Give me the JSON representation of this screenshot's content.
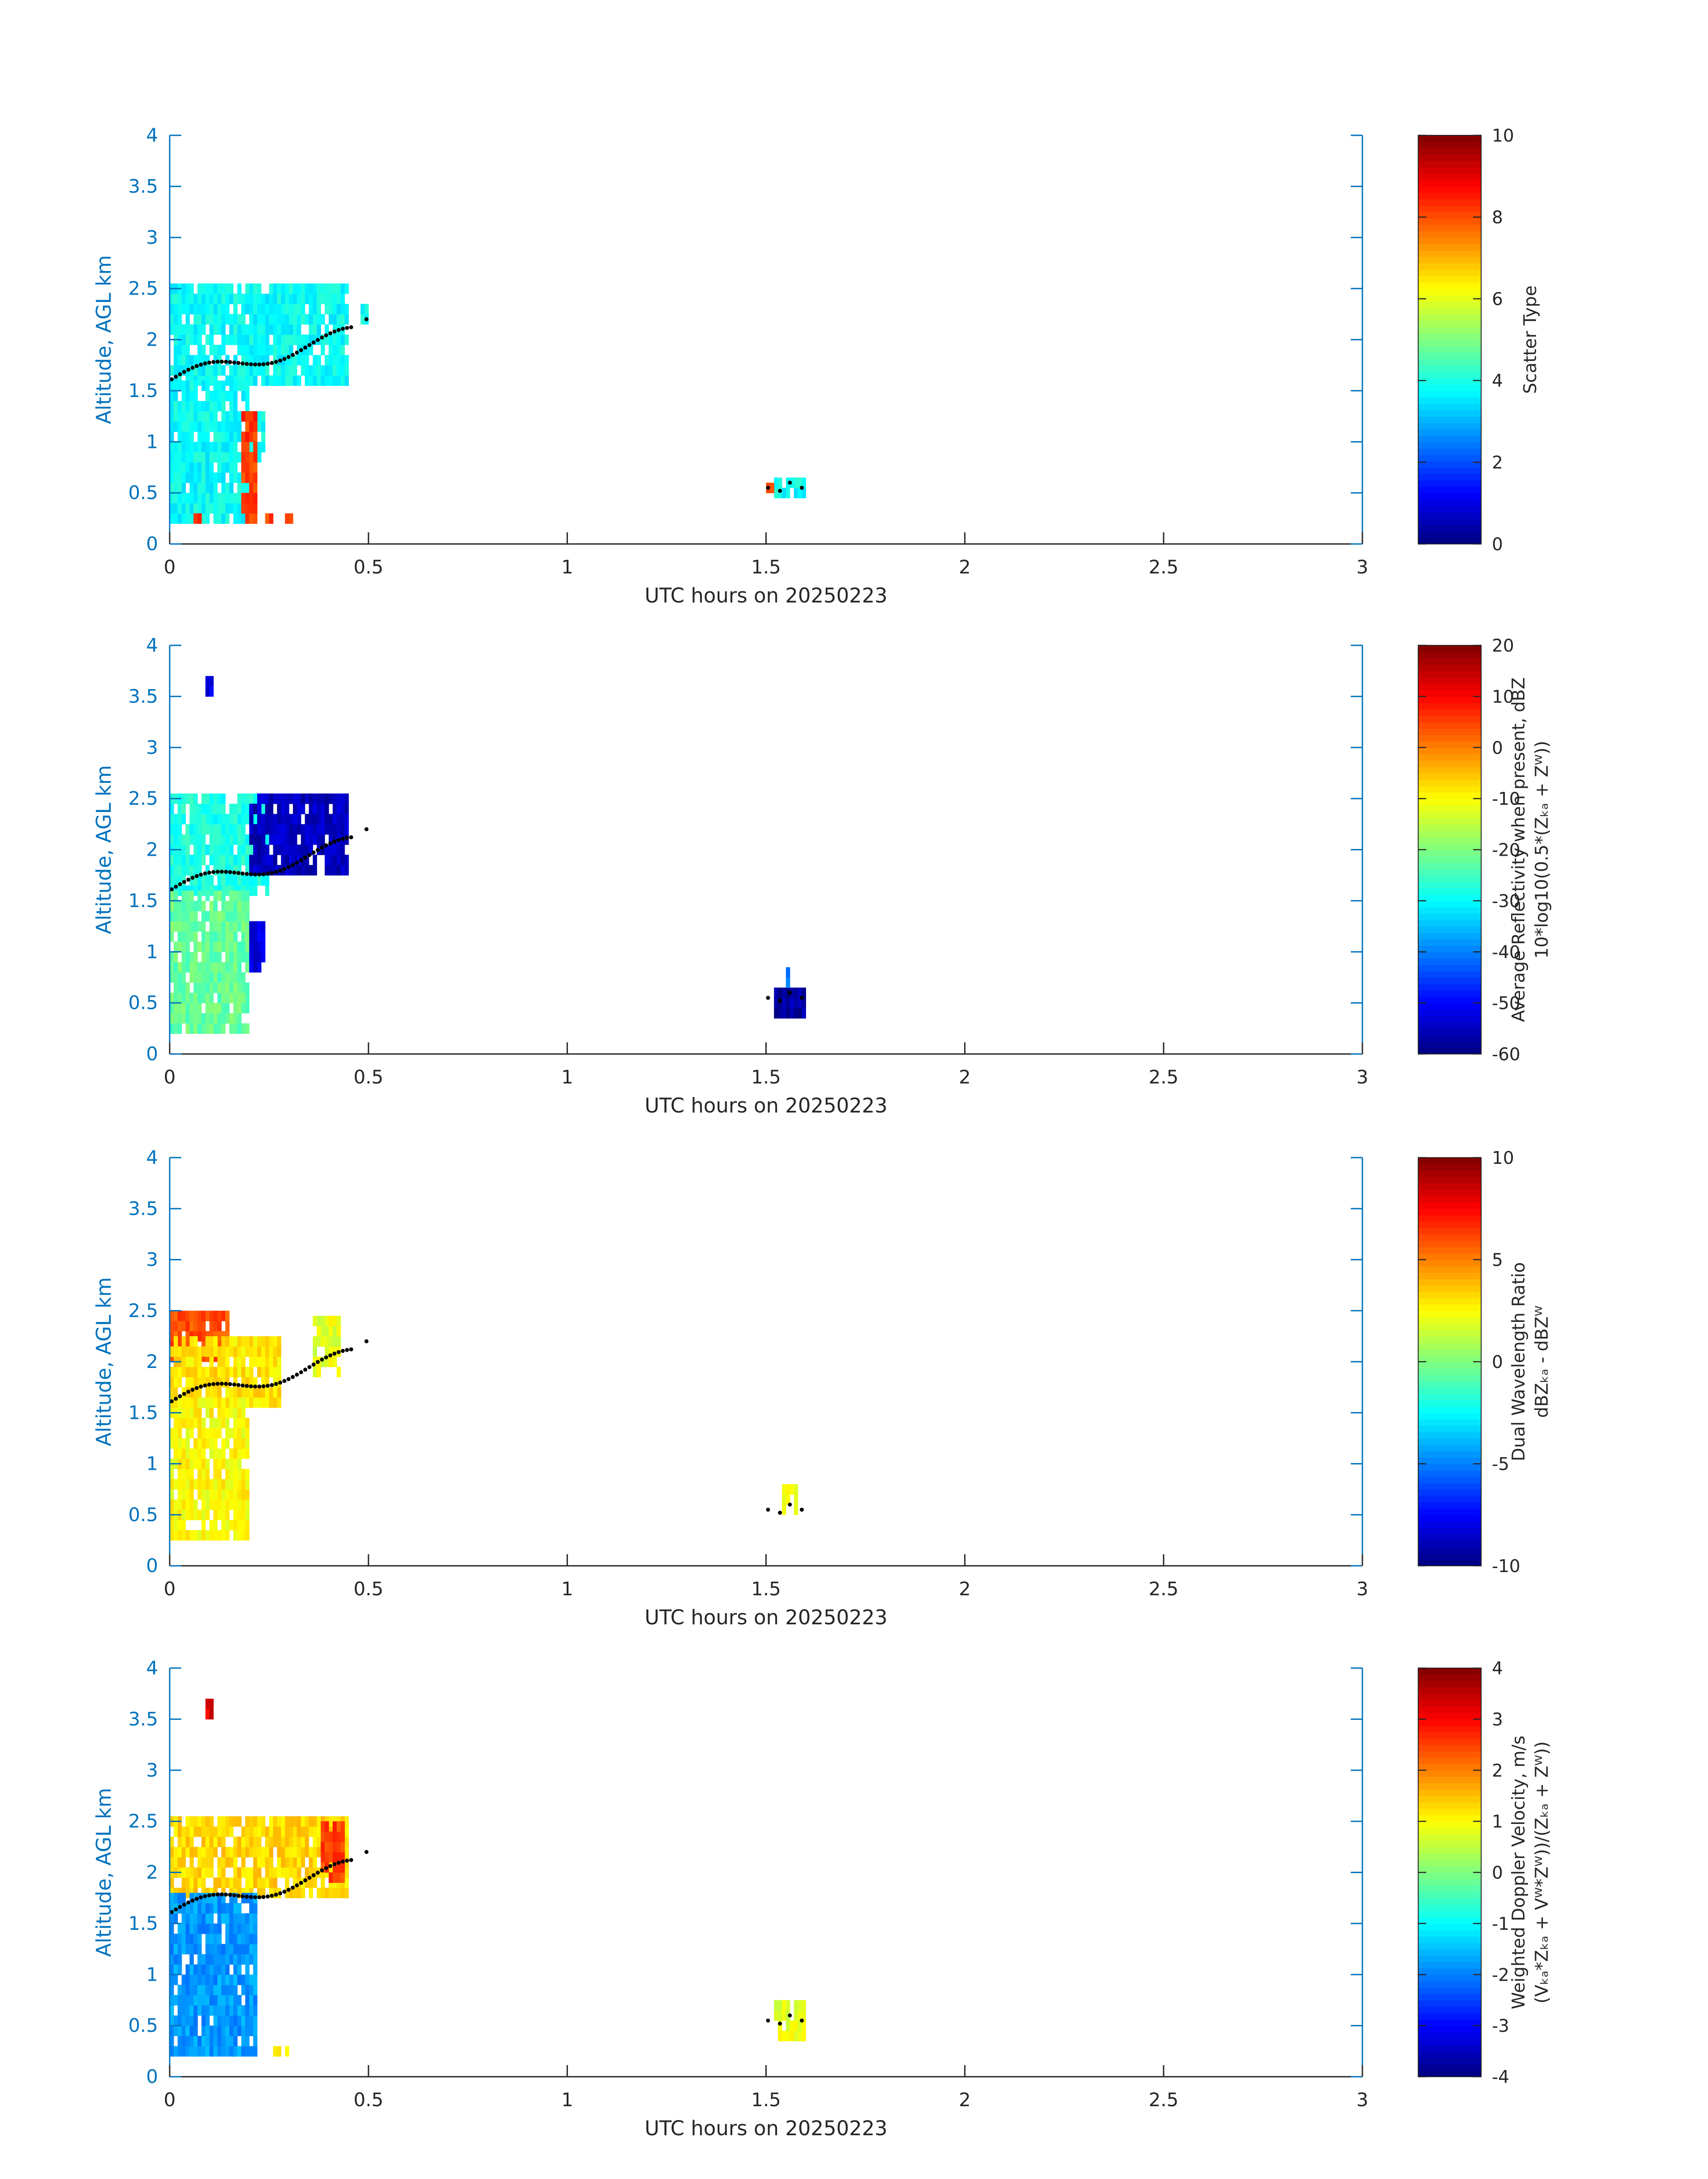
{
  "figure": {
    "title": ""
  },
  "chart_data": [
    {
      "type": "heatmap",
      "id": "scatter-type",
      "xlabel": "UTC hours on 20250223",
      "ylabel": "Altitude, AGL km",
      "xlim": [
        0,
        3
      ],
      "ylim": [
        0,
        4
      ],
      "xticks": [
        "0",
        "0.5",
        "1",
        "1.5",
        "2",
        "2.5",
        "3"
      ],
      "yticks": [
        "0",
        "0.5",
        "1",
        "1.5",
        "2",
        "2.5",
        "3",
        "3.5",
        "4"
      ],
      "colorbar": {
        "label_lines": [
          "Scatter Type"
        ],
        "range": [
          0,
          10
        ],
        "ticks": [
          "0",
          "2",
          "4",
          "6",
          "8",
          "10"
        ]
      },
      "colormap": "jet",
      "blobs": [
        {
          "x0": 0.0,
          "x1": 0.45,
          "y0": 1.55,
          "y1": 2.5,
          "value": 3.8
        },
        {
          "x0": 0.0,
          "x1": 0.2,
          "y0": 0.2,
          "y1": 1.6,
          "value": 3.8
        },
        {
          "x0": 0.2,
          "x1": 0.24,
          "y0": 0.8,
          "y1": 1.3,
          "value": 3.8
        },
        {
          "x0": 0.48,
          "x1": 0.5,
          "y0": 2.15,
          "y1": 2.35,
          "value": 3.8
        },
        {
          "x0": 0.18,
          "x1": 0.22,
          "y0": 0.2,
          "y1": 1.3,
          "value": 8.2
        },
        {
          "x0": 0.06,
          "x1": 0.08,
          "y0": 0.2,
          "y1": 0.3,
          "value": 8.2
        },
        {
          "x0": 0.24,
          "x1": 0.26,
          "y0": 0.2,
          "y1": 0.25,
          "value": 8.2
        },
        {
          "x0": 0.29,
          "x1": 0.31,
          "y0": 0.2,
          "y1": 0.3,
          "value": 8.2
        },
        {
          "x0": 1.52,
          "x1": 1.6,
          "y0": 0.45,
          "y1": 0.65,
          "value": 3.8
        },
        {
          "x0": 1.5,
          "x1": 1.52,
          "y0": 0.5,
          "y1": 0.6,
          "value": 8.2
        }
      ]
    },
    {
      "type": "heatmap",
      "id": "reflectivity",
      "xlabel": "UTC hours on 20250223",
      "ylabel": "Altitude, AGL km",
      "xlim": [
        0,
        3
      ],
      "ylim": [
        0,
        4
      ],
      "xticks": [
        "0",
        "0.5",
        "1",
        "1.5",
        "2",
        "2.5",
        "3"
      ],
      "yticks": [
        "0",
        "0.5",
        "1",
        "1.5",
        "2",
        "2.5",
        "3",
        "3.5",
        "4"
      ],
      "colorbar": {
        "label_lines": [
          "Average Reflectivity when present, dBZ",
          "10*log10(0.5*(Zₖₐ + Zᵂ))"
        ],
        "range": [
          -60,
          20
        ],
        "ticks": [
          "-60",
          "-50",
          "-40",
          "-30",
          "-20",
          "-10",
          "0",
          "10",
          "20"
        ]
      },
      "colormap": "jet",
      "blobs": [
        {
          "x0": 0.0,
          "x1": 0.25,
          "y0": 1.55,
          "y1": 2.5,
          "value": -28
        },
        {
          "x0": 0.2,
          "x1": 0.45,
          "y0": 1.75,
          "y1": 2.5,
          "value": -55
        },
        {
          "x0": 0.0,
          "x1": 0.2,
          "y0": 0.2,
          "y1": 1.6,
          "value": -22
        },
        {
          "x0": 0.2,
          "x1": 0.24,
          "y0": 0.8,
          "y1": 1.3,
          "value": -52
        },
        {
          "x0": 0.09,
          "x1": 0.11,
          "y0": 3.5,
          "y1": 3.7,
          "value": -52
        },
        {
          "x0": 1.52,
          "x1": 1.6,
          "y0": 0.35,
          "y1": 0.65,
          "value": -57
        },
        {
          "x0": 1.55,
          "x1": 1.56,
          "y0": 0.65,
          "y1": 0.85,
          "value": -40
        }
      ]
    },
    {
      "type": "heatmap",
      "id": "dual-wavelength-ratio",
      "xlabel": "UTC hours on 20250223",
      "ylabel": "Altitude, AGL km",
      "xlim": [
        0,
        3
      ],
      "ylim": [
        0,
        4
      ],
      "xticks": [
        "0",
        "0.5",
        "1",
        "1.5",
        "2",
        "2.5",
        "3"
      ],
      "yticks": [
        "0",
        "0.5",
        "1",
        "1.5",
        "2",
        "2.5",
        "3",
        "3.5",
        "4"
      ],
      "colorbar": {
        "label_lines": [
          "Dual Wavelength Ratio",
          "dBZₖₐ - dBZᵂ"
        ],
        "range": [
          -10,
          10
        ],
        "ticks": [
          "-10",
          "-5",
          "0",
          "5",
          "10"
        ]
      },
      "colormap": "jet",
      "blobs": [
        {
          "x0": 0.0,
          "x1": 0.15,
          "y0": 2.0,
          "y1": 2.5,
          "value": 6
        },
        {
          "x0": 0.0,
          "x1": 0.28,
          "y0": 1.55,
          "y1": 2.2,
          "value": 3
        },
        {
          "x0": 0.0,
          "x1": 0.2,
          "y0": 0.25,
          "y1": 1.6,
          "value": 2.5
        },
        {
          "x0": 0.36,
          "x1": 0.43,
          "y0": 1.85,
          "y1": 2.4,
          "value": 2
        },
        {
          "x0": 1.54,
          "x1": 1.58,
          "y0": 0.5,
          "y1": 0.8,
          "value": 2
        }
      ]
    },
    {
      "type": "heatmap",
      "id": "doppler-velocity",
      "xlabel": "UTC hours on 20250223",
      "ylabel": "Altitude, AGL km",
      "xlim": [
        0,
        3
      ],
      "ylim": [
        0,
        4
      ],
      "xticks": [
        "0",
        "0.5",
        "1",
        "1.5",
        "2",
        "2.5",
        "3"
      ],
      "yticks": [
        "0",
        "0.5",
        "1",
        "1.5",
        "2",
        "2.5",
        "3",
        "3.5",
        "4"
      ],
      "colorbar": {
        "label_lines": [
          "Weighted Doppler Velocity, m/s",
          "(Vₖₐ*Zₖₐ + Vᵂ*Zᵂ))/(Zₖₐ + Zᵂ))"
        ],
        "range": [
          -4,
          4
        ],
        "ticks": [
          "-4",
          "-3",
          "-2",
          "-1",
          "0",
          "1",
          "2",
          "3",
          "4"
        ]
      },
      "colormap": "jet",
      "blobs": [
        {
          "x0": 0.0,
          "x1": 0.45,
          "y0": 1.75,
          "y1": 2.5,
          "value": 1.3
        },
        {
          "x0": 0.38,
          "x1": 0.44,
          "y0": 1.9,
          "y1": 2.5,
          "value": 2.5
        },
        {
          "x0": 0.0,
          "x1": 0.22,
          "y0": 0.2,
          "y1": 1.75,
          "value": -1.8
        },
        {
          "x0": 0.09,
          "x1": 0.11,
          "y0": 3.5,
          "y1": 3.7,
          "value": 3.2
        },
        {
          "x0": 0.26,
          "x1": 0.3,
          "y0": 0.2,
          "y1": 0.3,
          "value": 1.2
        },
        {
          "x0": 1.52,
          "x1": 1.6,
          "y0": 0.35,
          "y1": 0.7,
          "value": 0.8
        }
      ]
    }
  ]
}
